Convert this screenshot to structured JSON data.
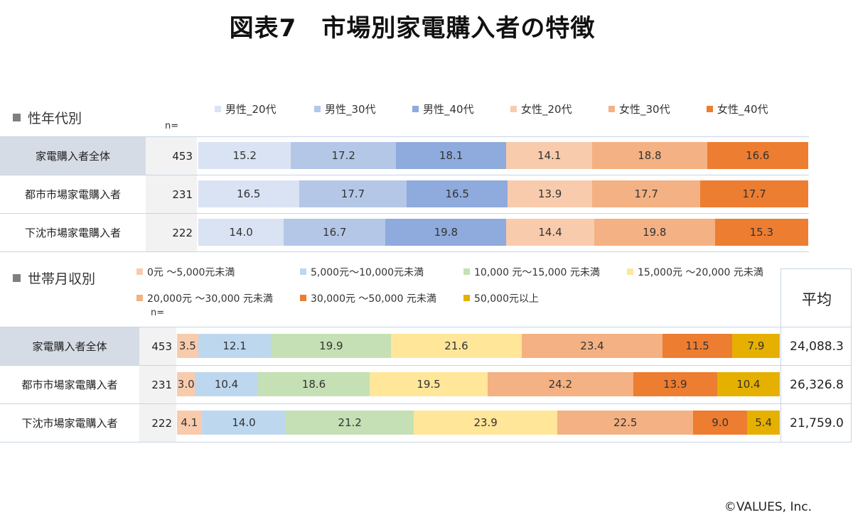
{
  "title": "図表7　市場別家電購入者の特徴",
  "copyright": "©VALUES, Inc.",
  "chart_data": [
    {
      "type": "bar",
      "orientation": "horizontal",
      "stacked": true,
      "section_label": "性年代別",
      "n_label": "n=",
      "categories": [
        "家電購入者全体",
        "都市市場家電購入者",
        "下沈市場家電購入者"
      ],
      "n": [
        "453",
        "231",
        "222"
      ],
      "series": [
        {
          "name": "男性_20代",
          "color": "#dae3f3",
          "values": [
            15.2,
            16.5,
            14.0
          ]
        },
        {
          "name": "男性_30代",
          "color": "#b4c7e7",
          "values": [
            17.2,
            17.7,
            16.7
          ]
        },
        {
          "name": "男性_40代",
          "color": "#8faadc",
          "values": [
            18.1,
            16.5,
            19.8
          ]
        },
        {
          "name": "女性_20代",
          "color": "#f8cbad",
          "values": [
            14.1,
            13.9,
            14.4
          ]
        },
        {
          "name": "女性_30代",
          "color": "#f4b183",
          "values": [
            18.8,
            17.7,
            19.8
          ]
        },
        {
          "name": "女性_40代",
          "color": "#ed7d31",
          "values": [
            16.6,
            17.7,
            15.3
          ]
        }
      ]
    },
    {
      "type": "bar",
      "orientation": "horizontal",
      "stacked": true,
      "section_label": "世帯月収別",
      "n_label": "n=",
      "average_header": "平均",
      "categories": [
        "家電購入者全体",
        "都市市場家電購入者",
        "下沈市場家電購入者"
      ],
      "n": [
        "453",
        "231",
        "222"
      ],
      "averages": [
        "24,088.3",
        "26,326.8",
        "21,759.0"
      ],
      "series": [
        {
          "name": "0元 ～5,000元未満",
          "color": "#f8cbad",
          "values": [
            3.5,
            3.0,
            4.1
          ]
        },
        {
          "name": "5,000元～10,000元未満",
          "color": "#bdd7ee",
          "values": [
            12.1,
            10.4,
            14.0
          ]
        },
        {
          "name": "10,000 元～15,000 元未満",
          "color": "#c5e0b4",
          "values": [
            19.9,
            18.6,
            21.2
          ]
        },
        {
          "name": "15,000元 ～20,000 元未満",
          "color": "#ffe699",
          "values": [
            21.6,
            19.5,
            23.9
          ]
        },
        {
          "name": "20,000元 ～30,000 元未満",
          "color": "#f4b183",
          "values": [
            23.4,
            24.2,
            22.5
          ]
        },
        {
          "name": "30,000元 ～50,000 元未満",
          "color": "#ed7d31",
          "values": [
            11.5,
            13.9,
            9.0
          ]
        },
        {
          "name": "50,000元以上",
          "color": "#e5b000",
          "values": [
            7.9,
            10.4,
            5.4
          ]
        }
      ]
    }
  ]
}
